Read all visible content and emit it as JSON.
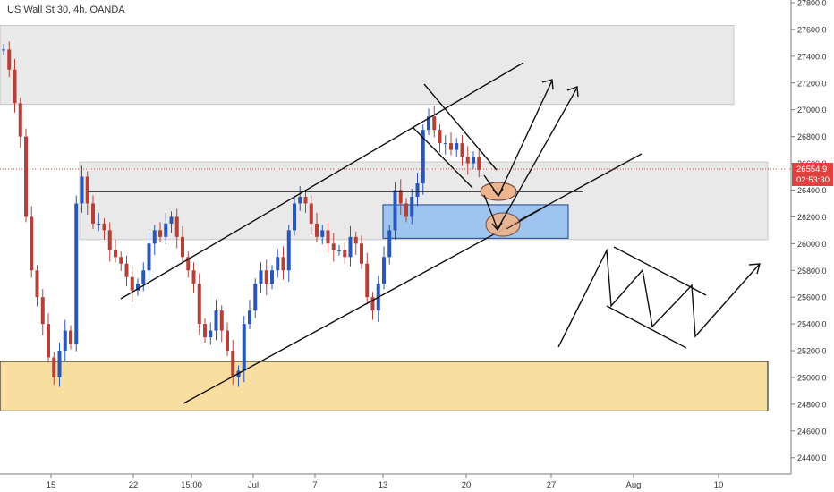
{
  "header": {
    "symbol_title": "US Wall St 30, 4h, OANDA"
  },
  "price_axis": {
    "ticks": [
      "27800.0",
      "27600.0",
      "27400.0",
      "27200.0",
      "27000.0",
      "26800.0",
      "26600.0",
      "26400.0",
      "26200.0",
      "26000.0",
      "25800.0",
      "25600.0",
      "25400.0",
      "25200.0",
      "25000.0",
      "24800.0",
      "24600.0",
      "24400.0"
    ],
    "last_price_label": "26554.9",
    "countdown_label": "02:53:30"
  },
  "time_axis": {
    "ticks": [
      "15",
      "22",
      "15:00",
      "Jul",
      "7",
      "13",
      "20",
      "27",
      "Aug",
      "10"
    ]
  },
  "colors": {
    "up": "#2a56b8",
    "down": "#b5403a",
    "zone": "#e9e9e9",
    "zone_border": "#bdbdbd",
    "yellow_zone": "#f8dea0",
    "blue_zone": "#9ec4ef",
    "blue_zone_border": "#1b3f8c",
    "circle_fill": "#efb58e",
    "circle_stroke": "#7a5040",
    "last_price": "#e0433f"
  },
  "chart_data": {
    "type": "candlestick",
    "title": "US Wall St 30, 4h, OANDA",
    "ylim": [
      24300,
      27950
    ],
    "y_ticks": [
      27800,
      27600,
      27400,
      27200,
      27000,
      26800,
      26600,
      26400,
      26200,
      26000,
      25800,
      25600,
      25400,
      25200,
      25000,
      24800,
      24600,
      24400
    ],
    "x_tick_labels": [
      "15",
      "22",
      "15:00",
      "Jul",
      "7",
      "13",
      "20",
      "27",
      "Aug",
      "10"
    ],
    "last_price": 26554.9,
    "series": [
      {
        "name": "price",
        "close": [
          27450,
          27300,
          27050,
          26800,
          26200,
          25800,
          25600,
          25400,
          25150,
          25000,
          25200,
          25350,
          25250,
          26300,
          26500,
          26300,
          26150,
          26150,
          26100,
          25950,
          25900,
          25850,
          25750,
          25650,
          25700,
          25800,
          26000,
          26100,
          26050,
          26150,
          26200,
          26050,
          25900,
          25800,
          25700,
          25400,
          25300,
          25350,
          25500,
          25350,
          25200,
          25000,
          25050,
          25400,
          25500,
          25700,
          25800,
          25700,
          25800,
          25900,
          25800,
          26100,
          26300,
          26350,
          26300,
          26150,
          26050,
          26100,
          26000,
          25950,
          25950,
          25900,
          26050,
          26000,
          25850,
          25600,
          25500,
          25700,
          25900,
          26100,
          26400,
          26300,
          26200,
          26350,
          26450,
          26850,
          26950,
          26850,
          26750,
          26750,
          26700,
          26750,
          26650,
          26600,
          26650,
          26550
        ]
      }
    ],
    "zones": [
      {
        "name": "upper-resistance-zone",
        "from": 27040,
        "to": 27630
      },
      {
        "name": "middle-range-zone",
        "from": 26030,
        "to": 26610
      },
      {
        "name": "lower-support-zone",
        "from": 24750,
        "to": 25120
      },
      {
        "name": "blue-demand-zone",
        "from": 26040,
        "to": 26290
      }
    ]
  }
}
